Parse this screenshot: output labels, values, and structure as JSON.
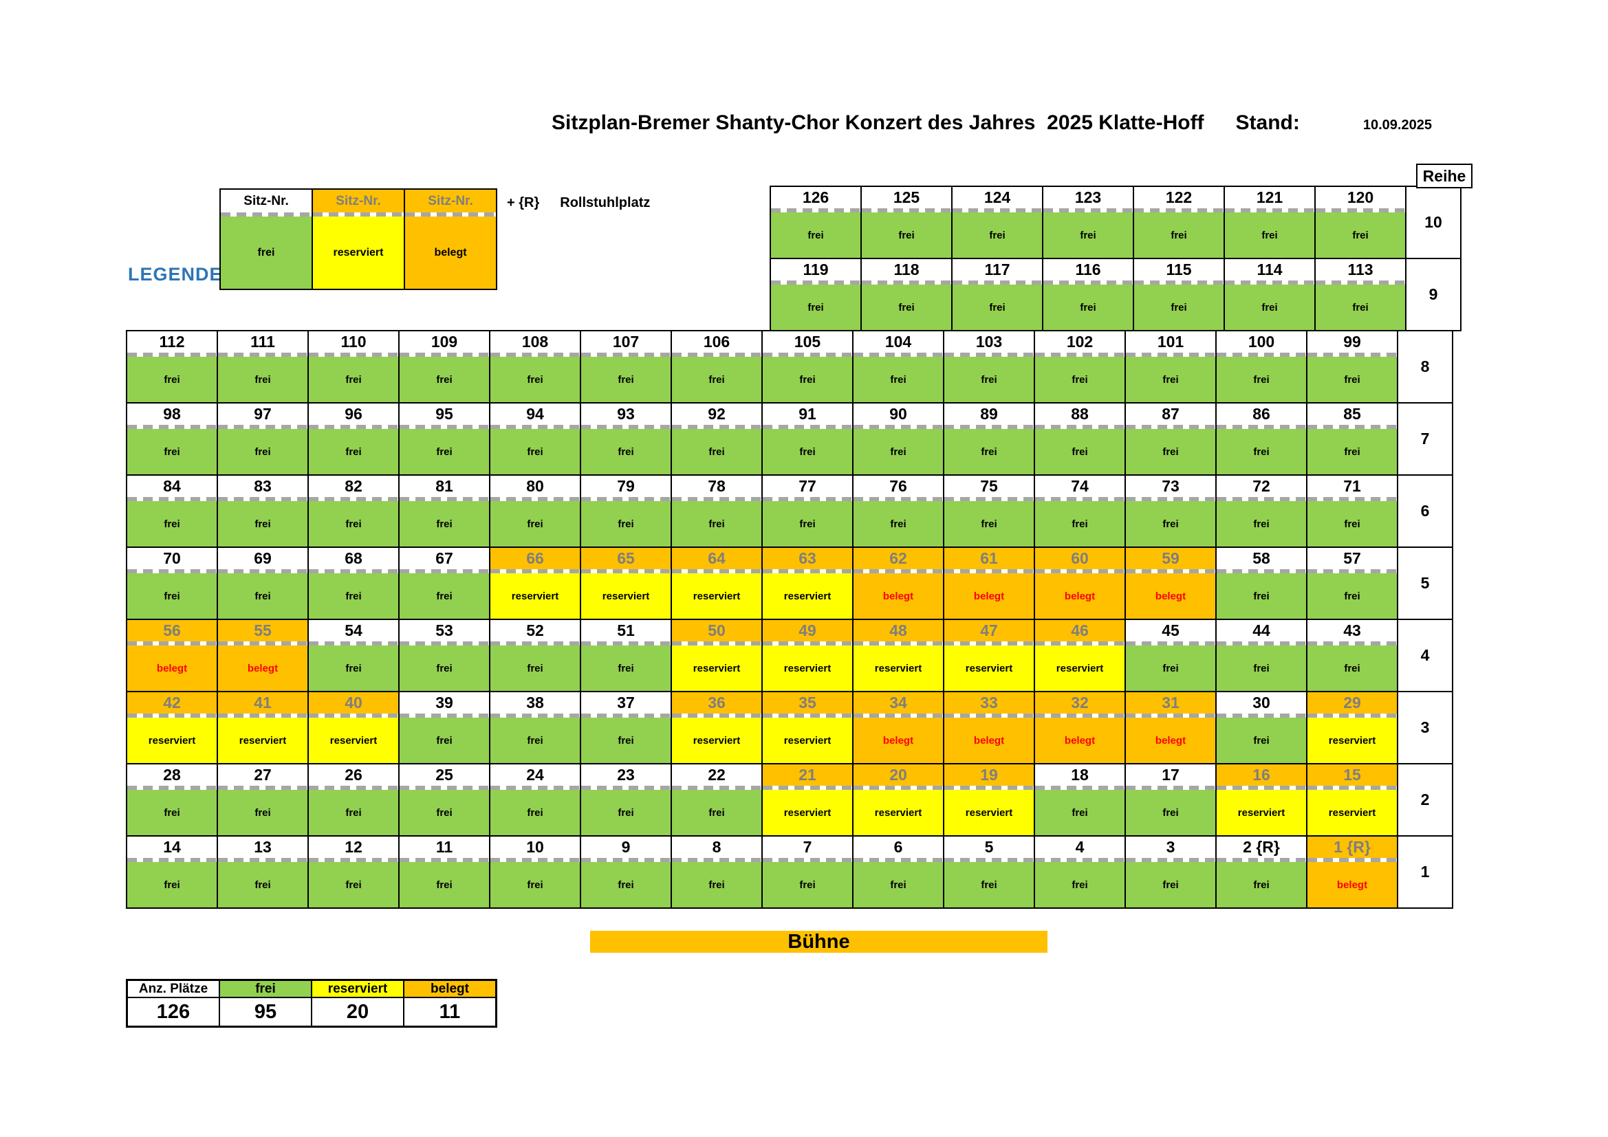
{
  "colors": {
    "green": "#92D050",
    "yellow": "#FFFF00",
    "orange": "#FFC000",
    "red": "#FF0000",
    "blue": "#2E75B6",
    "graynum": "#7F7F7F",
    "dash": "#A6A6A6"
  },
  "title": {
    "text": "Sitzplan-Bremer Shanty-Chor Konzert des Jahres  2025 Klatte-Hoff",
    "stand_label": "Stand:",
    "date": "10.09.2025"
  },
  "legend": {
    "label": "LEGENDE",
    "items": [
      {
        "header": "Sitz-Nr.",
        "status": "frei",
        "label": "frei"
      },
      {
        "header": "Sitz-Nr.",
        "status": "reserviert",
        "label": "reserviert"
      },
      {
        "header": "Sitz-Nr.",
        "status": "belegt",
        "label": "belegt"
      }
    ],
    "wheelchair": {
      "prefix": "+ {R}",
      "label": "Rollstuhlplatz"
    }
  },
  "seat_map": {
    "reihe_header": "Reihe",
    "status_labels": {
      "frei": "frei",
      "reserviert": "reserviert",
      "belegt": "belegt"
    },
    "rows": [
      {
        "reihe": "10",
        "offset": 7,
        "seats": [
          {
            "n": "126",
            "s": "frei"
          },
          {
            "n": "125",
            "s": "frei"
          },
          {
            "n": "124",
            "s": "frei"
          },
          {
            "n": "123",
            "s": "frei"
          },
          {
            "n": "122",
            "s": "frei"
          },
          {
            "n": "121",
            "s": "frei"
          },
          {
            "n": "120",
            "s": "frei"
          }
        ]
      },
      {
        "reihe": "9",
        "offset": 7,
        "seats": [
          {
            "n": "119",
            "s": "frei"
          },
          {
            "n": "118",
            "s": "frei"
          },
          {
            "n": "117",
            "s": "frei"
          },
          {
            "n": "116",
            "s": "frei"
          },
          {
            "n": "115",
            "s": "frei"
          },
          {
            "n": "114",
            "s": "frei"
          },
          {
            "n": "113",
            "s": "frei"
          }
        ]
      },
      {
        "reihe": "8",
        "offset": 0,
        "seats": [
          {
            "n": "112",
            "s": "frei"
          },
          {
            "n": "111",
            "s": "frei"
          },
          {
            "n": "110",
            "s": "frei"
          },
          {
            "n": "109",
            "s": "frei"
          },
          {
            "n": "108",
            "s": "frei"
          },
          {
            "n": "107",
            "s": "frei"
          },
          {
            "n": "106",
            "s": "frei"
          },
          {
            "n": "105",
            "s": "frei"
          },
          {
            "n": "104",
            "s": "frei"
          },
          {
            "n": "103",
            "s": "frei"
          },
          {
            "n": "102",
            "s": "frei"
          },
          {
            "n": "101",
            "s": "frei"
          },
          {
            "n": "100",
            "s": "frei"
          },
          {
            "n": "99",
            "s": "frei"
          }
        ]
      },
      {
        "reihe": "7",
        "offset": 0,
        "seats": [
          {
            "n": "98",
            "s": "frei"
          },
          {
            "n": "97",
            "s": "frei"
          },
          {
            "n": "96",
            "s": "frei"
          },
          {
            "n": "95",
            "s": "frei"
          },
          {
            "n": "94",
            "s": "frei"
          },
          {
            "n": "93",
            "s": "frei"
          },
          {
            "n": "92",
            "s": "frei"
          },
          {
            "n": "91",
            "s": "frei"
          },
          {
            "n": "90",
            "s": "frei"
          },
          {
            "n": "89",
            "s": "frei"
          },
          {
            "n": "88",
            "s": "frei"
          },
          {
            "n": "87",
            "s": "frei"
          },
          {
            "n": "86",
            "s": "frei"
          },
          {
            "n": "85",
            "s": "frei"
          }
        ]
      },
      {
        "reihe": "6",
        "offset": 0,
        "seats": [
          {
            "n": "84",
            "s": "frei"
          },
          {
            "n": "83",
            "s": "frei"
          },
          {
            "n": "82",
            "s": "frei"
          },
          {
            "n": "81",
            "s": "frei"
          },
          {
            "n": "80",
            "s": "frei"
          },
          {
            "n": "79",
            "s": "frei"
          },
          {
            "n": "78",
            "s": "frei"
          },
          {
            "n": "77",
            "s": "frei"
          },
          {
            "n": "76",
            "s": "frei"
          },
          {
            "n": "75",
            "s": "frei"
          },
          {
            "n": "74",
            "s": "frei"
          },
          {
            "n": "73",
            "s": "frei"
          },
          {
            "n": "72",
            "s": "frei"
          },
          {
            "n": "71",
            "s": "frei"
          }
        ]
      },
      {
        "reihe": "5",
        "offset": 0,
        "seats": [
          {
            "n": "70",
            "s": "frei"
          },
          {
            "n": "69",
            "s": "frei"
          },
          {
            "n": "68",
            "s": "frei"
          },
          {
            "n": "67",
            "s": "frei"
          },
          {
            "n": "66",
            "s": "reserviert"
          },
          {
            "n": "65",
            "s": "reserviert"
          },
          {
            "n": "64",
            "s": "reserviert"
          },
          {
            "n": "63",
            "s": "reserviert"
          },
          {
            "n": "62",
            "s": "belegt"
          },
          {
            "n": "61",
            "s": "belegt"
          },
          {
            "n": "60",
            "s": "belegt"
          },
          {
            "n": "59",
            "s": "belegt"
          },
          {
            "n": "58",
            "s": "frei"
          },
          {
            "n": "57",
            "s": "frei"
          }
        ]
      },
      {
        "reihe": "4",
        "offset": 0,
        "seats": [
          {
            "n": "56",
            "s": "belegt"
          },
          {
            "n": "55",
            "s": "belegt"
          },
          {
            "n": "54",
            "s": "frei"
          },
          {
            "n": "53",
            "s": "frei"
          },
          {
            "n": "52",
            "s": "frei"
          },
          {
            "n": "51",
            "s": "frei"
          },
          {
            "n": "50",
            "s": "reserviert"
          },
          {
            "n": "49",
            "s": "reserviert"
          },
          {
            "n": "48",
            "s": "reserviert"
          },
          {
            "n": "47",
            "s": "reserviert"
          },
          {
            "n": "46",
            "s": "reserviert"
          },
          {
            "n": "45",
            "s": "frei"
          },
          {
            "n": "44",
            "s": "frei"
          },
          {
            "n": "43",
            "s": "frei"
          }
        ]
      },
      {
        "reihe": "3",
        "offset": 0,
        "seats": [
          {
            "n": "42",
            "s": "reserviert"
          },
          {
            "n": "41",
            "s": "reserviert"
          },
          {
            "n": "40",
            "s": "reserviert"
          },
          {
            "n": "39",
            "s": "frei"
          },
          {
            "n": "38",
            "s": "frei"
          },
          {
            "n": "37",
            "s": "frei"
          },
          {
            "n": "36",
            "s": "reserviert"
          },
          {
            "n": "35",
            "s": "reserviert"
          },
          {
            "n": "34",
            "s": "belegt"
          },
          {
            "n": "33",
            "s": "belegt"
          },
          {
            "n": "32",
            "s": "belegt"
          },
          {
            "n": "31",
            "s": "belegt"
          },
          {
            "n": "30",
            "s": "frei"
          },
          {
            "n": "29",
            "s": "reserviert"
          }
        ]
      },
      {
        "reihe": "2",
        "offset": 0,
        "seats": [
          {
            "n": "28",
            "s": "frei"
          },
          {
            "n": "27",
            "s": "frei"
          },
          {
            "n": "26",
            "s": "frei"
          },
          {
            "n": "25",
            "s": "frei"
          },
          {
            "n": "24",
            "s": "frei"
          },
          {
            "n": "23",
            "s": "frei"
          },
          {
            "n": "22",
            "s": "frei"
          },
          {
            "n": "21",
            "s": "reserviert"
          },
          {
            "n": "20",
            "s": "reserviert"
          },
          {
            "n": "19",
            "s": "reserviert"
          },
          {
            "n": "18",
            "s": "frei"
          },
          {
            "n": "17",
            "s": "frei"
          },
          {
            "n": "16",
            "s": "reserviert"
          },
          {
            "n": "15",
            "s": "reserviert"
          }
        ]
      },
      {
        "reihe": "1",
        "offset": 0,
        "seats": [
          {
            "n": "14",
            "s": "frei"
          },
          {
            "n": "13",
            "s": "frei"
          },
          {
            "n": "12",
            "s": "frei"
          },
          {
            "n": "11",
            "s": "frei"
          },
          {
            "n": "10",
            "s": "frei"
          },
          {
            "n": "9",
            "s": "frei"
          },
          {
            "n": "8",
            "s": "frei"
          },
          {
            "n": "7",
            "s": "frei"
          },
          {
            "n": "6",
            "s": "frei"
          },
          {
            "n": "5",
            "s": "frei"
          },
          {
            "n": "4",
            "s": "frei"
          },
          {
            "n": "3",
            "s": "frei"
          },
          {
            "n": "2 {R}",
            "s": "frei"
          },
          {
            "n": "1 {R}",
            "s": "belegt"
          }
        ]
      }
    ]
  },
  "stage": {
    "label": "Bühne"
  },
  "summary": {
    "columns": [
      {
        "label": "Anz. Plätze",
        "status": "none",
        "value": "126"
      },
      {
        "label": "frei",
        "status": "frei",
        "value": "95"
      },
      {
        "label": "reserviert",
        "status": "reserviert",
        "value": "20"
      },
      {
        "label": "belegt",
        "status": "belegt",
        "value": "11"
      }
    ]
  }
}
